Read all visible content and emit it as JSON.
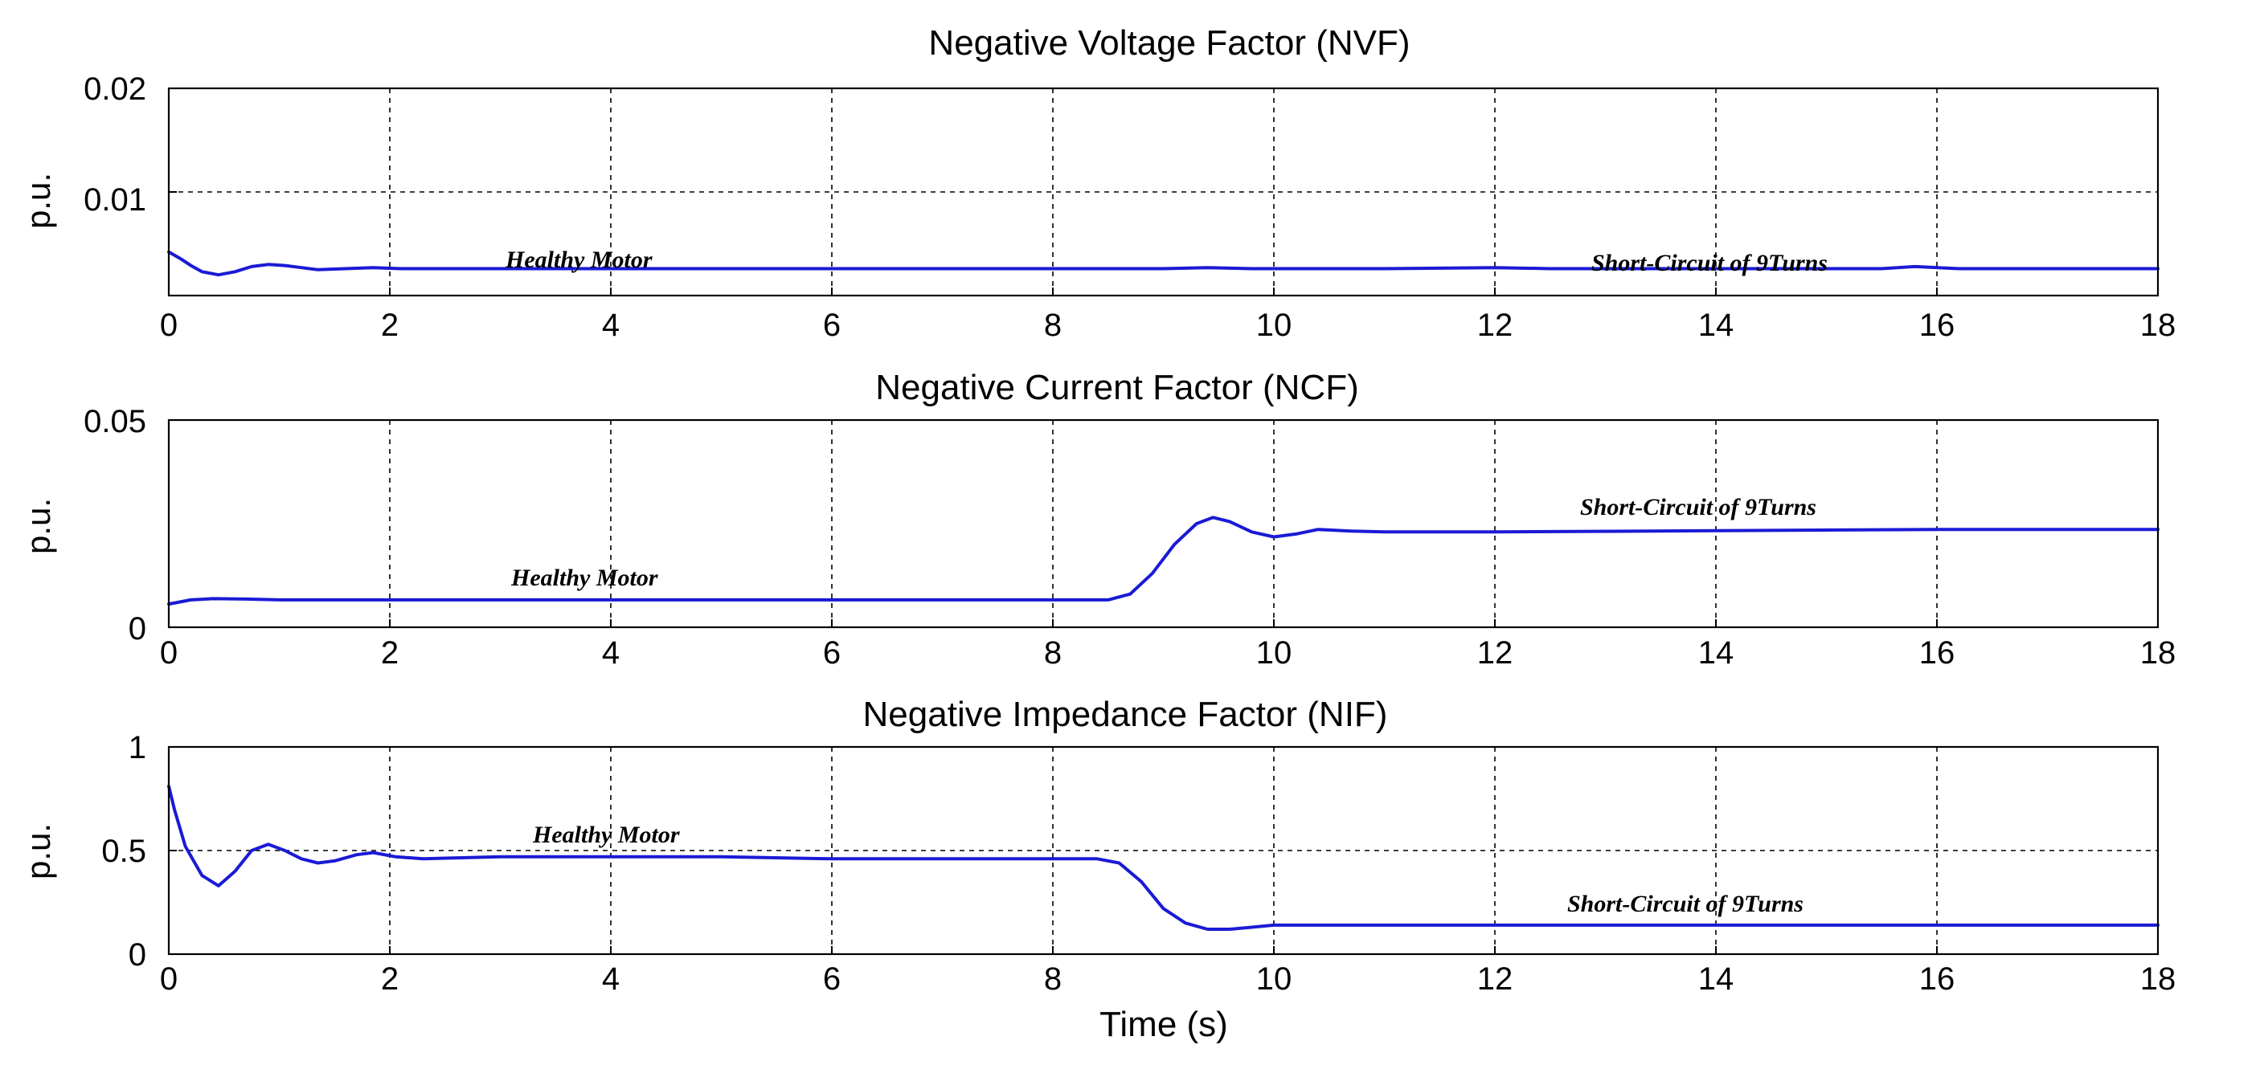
{
  "colors": {
    "line": "#1a1ad6",
    "axes": "#000000",
    "background": "#ffffff"
  },
  "chart_data": [
    {
      "type": "line",
      "title": "Negative Voltage Factor (NVF)",
      "xlabel": "",
      "ylabel": "p.u.",
      "xlim": [
        0,
        18
      ],
      "ylim": [
        0,
        0.02
      ],
      "xticks": [
        0,
        2,
        4,
        6,
        8,
        10,
        12,
        14,
        16,
        18
      ],
      "xtick_labels": [
        "0",
        "2",
        "4",
        "6",
        "8",
        "10",
        "12",
        "14",
        "16",
        "18"
      ],
      "yticks": [
        0.01,
        0.02
      ],
      "ytick_labels": [
        "0.01",
        "0.02"
      ],
      "grid": true,
      "annotations": [
        {
          "text": "Healthy Motor",
          "x": 3.05,
          "y": 0.0035
        },
        {
          "text": "Short-Circuit of 9Turns",
          "x": 13.1,
          "y": 0.0033
        }
      ],
      "series": [
        {
          "name": "NVF",
          "x": [
            0,
            0.1,
            0.2,
            0.3,
            0.45,
            0.6,
            0.75,
            0.9,
            1.05,
            1.2,
            1.35,
            1.6,
            1.85,
            2.1,
            2.5,
            4,
            6,
            8,
            9,
            9.4,
            9.8,
            10.5,
            11,
            12,
            12.5,
            13,
            14,
            15.5,
            15.8,
            16.2,
            17,
            18
          ],
          "y": [
            0.0042,
            0.0036,
            0.0029,
            0.0023,
            0.002,
            0.0023,
            0.0028,
            0.003,
            0.0029,
            0.0027,
            0.0025,
            0.0026,
            0.0027,
            0.0026,
            0.0026,
            0.0026,
            0.0026,
            0.0026,
            0.0026,
            0.0027,
            0.0026,
            0.0026,
            0.0026,
            0.0027,
            0.0026,
            0.0026,
            0.0026,
            0.0026,
            0.0028,
            0.0026,
            0.0026,
            0.0026
          ]
        }
      ]
    },
    {
      "type": "line",
      "title": "Negative Current Factor (NCF)",
      "xlabel": "",
      "ylabel": "p.u.",
      "xlim": [
        0,
        18
      ],
      "ylim": [
        0,
        0.05
      ],
      "xticks": [
        0,
        2,
        4,
        6,
        8,
        10,
        12,
        14,
        16,
        18
      ],
      "xtick_labels": [
        "0",
        "2",
        "4",
        "6",
        "8",
        "10",
        "12",
        "14",
        "16",
        "18"
      ],
      "yticks": [
        0,
        0.05
      ],
      "ytick_labels": [
        "0",
        "0.05"
      ],
      "grid": true,
      "annotations": [
        {
          "text": "Healthy Motor",
          "x": 3.1,
          "y": 0.0105
        },
        {
          "text": "Short-Circuit of 9Turns",
          "x": 12.5,
          "y": 0.027
        }
      ],
      "series": [
        {
          "name": "NCF",
          "x": [
            0,
            0.2,
            0.4,
            0.7,
            1,
            2,
            4,
            6,
            8,
            8.5,
            8.7,
            8.9,
            9.1,
            9.3,
            9.45,
            9.6,
            9.8,
            10,
            10.2,
            10.4,
            10.7,
            11,
            12,
            14,
            16,
            18
          ],
          "y": [
            0.0056,
            0.0066,
            0.0069,
            0.0068,
            0.0066,
            0.0066,
            0.0066,
            0.0066,
            0.0066,
            0.0066,
            0.008,
            0.013,
            0.02,
            0.025,
            0.0265,
            0.0255,
            0.023,
            0.0218,
            0.0225,
            0.0236,
            0.0232,
            0.023,
            0.023,
            0.0233,
            0.0236,
            0.0236
          ]
        }
      ]
    },
    {
      "type": "line",
      "title": "Negative Impedance Factor (NIF)",
      "xlabel": "Time (s)",
      "ylabel": "p.u.",
      "xlim": [
        0,
        18
      ],
      "ylim": [
        0,
        1
      ],
      "xticks": [
        0,
        2,
        4,
        6,
        8,
        10,
        12,
        14,
        16,
        18
      ],
      "xtick_labels": [
        "0",
        "2",
        "4",
        "6",
        "8",
        "10",
        "12",
        "14",
        "16",
        "18"
      ],
      "yticks": [
        0,
        0.5,
        1
      ],
      "ytick_labels": [
        "0",
        "0.5",
        "1"
      ],
      "grid": true,
      "annotations": [
        {
          "text": "Healthy Motor",
          "x": 3.3,
          "y": 0.56
        },
        {
          "text": "Short-Circuit of 9Turns",
          "x": 12.4,
          "y": 0.2
        }
      ],
      "series": [
        {
          "name": "NIF",
          "x": [
            0,
            0.05,
            0.15,
            0.3,
            0.45,
            0.6,
            0.75,
            0.9,
            1.05,
            1.2,
            1.35,
            1.5,
            1.7,
            1.85,
            2.05,
            2.3,
            3,
            4,
            5,
            6,
            7,
            8,
            8.4,
            8.6,
            8.8,
            9,
            9.2,
            9.4,
            9.6,
            9.8,
            10,
            10.2,
            11,
            12,
            14,
            16,
            18
          ],
          "y": [
            0.81,
            0.7,
            0.52,
            0.38,
            0.33,
            0.4,
            0.5,
            0.53,
            0.5,
            0.46,
            0.44,
            0.45,
            0.48,
            0.49,
            0.47,
            0.46,
            0.47,
            0.47,
            0.47,
            0.46,
            0.46,
            0.46,
            0.46,
            0.44,
            0.35,
            0.22,
            0.15,
            0.12,
            0.12,
            0.13,
            0.14,
            0.14,
            0.14,
            0.14,
            0.14,
            0.14,
            0.14
          ]
        }
      ]
    }
  ]
}
